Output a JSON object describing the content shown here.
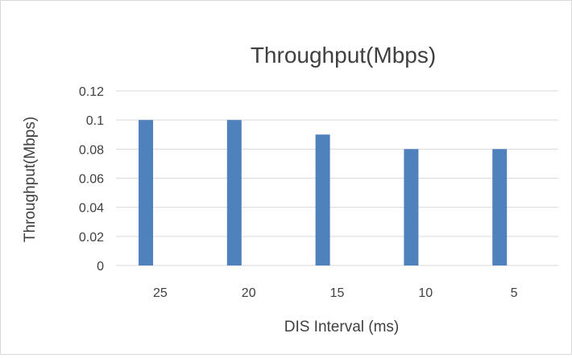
{
  "chart_data": {
    "type": "bar",
    "title": "Throughput(Mbps)",
    "xlabel": "DIS Interval (ms)",
    "ylabel": "Throughput(Mbps)",
    "categories": [
      "25",
      "20",
      "15",
      "10",
      "5"
    ],
    "series": [
      {
        "values": [
          0.1,
          0.1,
          0.09,
          0.08,
          0.08
        ]
      }
    ],
    "ylim": [
      0,
      0.12
    ],
    "yticks": [
      "0",
      "0.02",
      "0.04",
      "0.06",
      "0.08",
      "0.1",
      "0.12"
    ],
    "grid": true,
    "legend": "none",
    "bar_color": "#4F81BD",
    "grid_color": "#d9d9d9"
  }
}
